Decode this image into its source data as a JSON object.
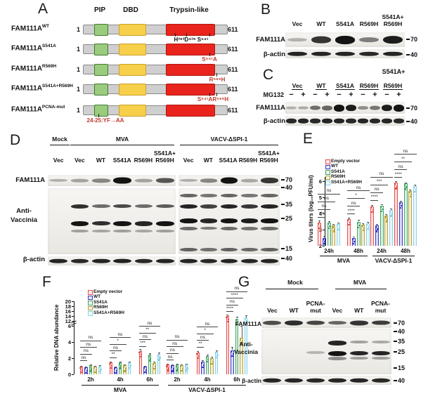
{
  "colors": {
    "pip_green": "#9bcb7d",
    "pip_green_border": "#3f7a33",
    "dbd_yellow": "#f7cf4a",
    "dbd_yellow_border": "#c9a22a",
    "trypsin_red": "#e8241d",
    "trypsin_red_border": "#b0140f",
    "annotation_red": "#c0392b",
    "series": [
      "#e85050",
      "#3a3ac6",
      "#46a566",
      "#b5a23a",
      "#8bd2e8"
    ]
  },
  "panelA": {
    "label": "A",
    "domain_headers": [
      "PIP",
      "DBD",
      "Trypsin-like"
    ],
    "n_start": "1",
    "n_end": "611",
    "rows": [
      {
        "name": "FAM111A",
        "sup": "WT",
        "annotation": "H³⁹³D⁴³⁹  S⁵⁴¹",
        "annotation_color": "black"
      },
      {
        "name": "FAM111A",
        "sup": "S541A",
        "annotation": "S⁵⁴¹A",
        "annotation_color": "red"
      },
      {
        "name": "FAM111A",
        "sup": "R569H",
        "annotation": "R⁵⁶⁹H",
        "annotation_color": "red"
      },
      {
        "name": "FAM111A",
        "sup": "S541A+R569H",
        "annotation": "S⁵⁴¹AR⁵⁶⁹H",
        "annotation_color": "red"
      },
      {
        "name": "FAM111A",
        "sup": "PCNA-mut",
        "annotation": "24-25:YF→AA",
        "annotation_color": "red"
      }
    ]
  },
  "panelB": {
    "label": "B",
    "lane_headers": [
      "Vec",
      "WT",
      "S541A",
      "R569H",
      "S541A+\nR569H"
    ],
    "rows": [
      {
        "label": "FAM111A",
        "marker": "70",
        "bands": [
          0.04,
          0.8,
          1,
          0.35,
          0.95
        ]
      },
      {
        "label": "β-actin",
        "marker": "40",
        "bands": [
          0.9,
          0.9,
          0.9,
          0.88,
          0.9
        ]
      }
    ]
  },
  "panelC": {
    "label": "C",
    "corner_note": "S541A+",
    "group_headers": [
      "Vec",
      "WT",
      "S541A",
      "R569H",
      "R569H"
    ],
    "treatment_label": "MG132",
    "treatment_signs": [
      "−",
      "+",
      "−",
      "+",
      "−",
      "+",
      "−",
      "+",
      "−",
      "+"
    ],
    "rows": [
      {
        "label": "FAM111A",
        "marker": "70",
        "bands": [
          0.05,
          0.08,
          0.45,
          0.5,
          1,
          0.95,
          0.25,
          0.4,
          0.95,
          1
        ]
      },
      {
        "label": "β-actin",
        "marker": "40",
        "bands": [
          0.88,
          0.9,
          0.88,
          0.9,
          0.9,
          0.88,
          0.9,
          0.88,
          0.9,
          0.88
        ]
      }
    ]
  },
  "panelD": {
    "label": "D",
    "group_headers": [
      "Mock",
      "MVA",
      "VACV-ΔSPI-1"
    ],
    "lane_headers_left": [
      "Vec",
      "Vec",
      "WT",
      "S541A",
      "R569H",
      "S541A+\nR569H"
    ],
    "lane_headers_right": [
      "Vec",
      "WT",
      "S541A",
      "R569H",
      "S541A+\nR569H"
    ],
    "row_labels": [
      "FAM111A",
      "Anti-\nVaccinia",
      "β-actin"
    ],
    "markers": [
      "70",
      "40",
      "35",
      "25",
      "15",
      "40"
    ],
    "fam111a_left": [
      0.05,
      0.12,
      0.3,
      1,
      0.12,
      0.6
    ],
    "fam111a_right": [
      0.06,
      0.3,
      1,
      0.1,
      0.8
    ],
    "antivaccinia_left": {
      "positions": [
        0.24,
        0.5,
        0.63
      ],
      "lanes": [
        [
          0,
          0,
          0
        ],
        [
          0.85,
          1,
          0.2
        ],
        [
          0.5,
          0.85,
          0.15
        ],
        [
          0.7,
          1,
          0.2
        ],
        [
          0.5,
          0.9,
          0.15
        ],
        [
          0.6,
          1,
          0.2
        ]
      ]
    },
    "antivaccinia_right": {
      "positions": [
        0.08,
        0.24,
        0.46,
        0.58,
        0.9
      ],
      "lanes": [
        [
          0.55,
          0.9,
          1,
          0.5,
          0.55
        ],
        [
          0.45,
          0.75,
          0.9,
          0.4,
          0.45
        ],
        [
          0.55,
          0.9,
          1,
          0.5,
          0.55
        ],
        [
          0.45,
          0.8,
          0.95,
          0.45,
          0.5
        ],
        [
          0.55,
          0.9,
          1,
          0.5,
          0.55
        ]
      ]
    },
    "actin_left": [
      0.9,
      0.88,
      0.9,
      0.92,
      0.88,
      0.9
    ],
    "actin_right": [
      0.9,
      0.88,
      0.9,
      0.88,
      0.9
    ]
  },
  "panelG": {
    "label": "G",
    "group_headers": [
      "Mock",
      "MVA"
    ],
    "lane_headers": [
      "Vec",
      "WT",
      "PCNA-\nmut",
      "Vec",
      "WT",
      "PCNA-\nmut"
    ],
    "row_labels": [
      "FAM111A",
      "Anti-\nVaccinia",
      "β-actin"
    ],
    "markers": [
      "70",
      "40",
      "35",
      "25",
      "15",
      "40"
    ],
    "fam111a": [
      0.65,
      0.85,
      0.7,
      0.5,
      0.8,
      0.75
    ],
    "antivaccinia": {
      "positions": [
        0.26,
        0.49,
        0.62
      ],
      "lanes": [
        [
          0,
          0,
          0
        ],
        [
          0,
          0,
          0
        ],
        [
          0,
          0.08,
          0
        ],
        [
          0.9,
          1,
          0.3
        ],
        [
          0.2,
          0.9,
          0.2
        ],
        [
          0.15,
          0.9,
          0.2
        ]
      ]
    },
    "actin": [
      0.9,
      0.9,
      0.88,
      0.9,
      0.9,
      0.88
    ]
  },
  "chart_data": [
    {
      "id": "E",
      "panel_label": "E",
      "type": "bar",
      "ylabel": "Virus titers (log₁₀PFU/ml)",
      "ylim": [
        2,
        6
      ],
      "yticks": [
        2,
        3,
        4,
        5,
        6
      ],
      "legend": [
        "Empty vector",
        "WT",
        "S541A",
        "R569H",
        "S541A+R569H"
      ],
      "legend_position": "top-left",
      "conditions": [
        {
          "label": "MVA",
          "timepoints": [
            "24h",
            "48h"
          ]
        },
        {
          "label": "VACV-ΔSPI-1",
          "timepoints": [
            "24h",
            "48h"
          ]
        }
      ],
      "groups": [
        {
          "condition": "MVA",
          "label": "24h",
          "values": [
            3.45,
            2.5,
            3.45,
            3.25,
            3.35
          ],
          "errors": [
            0.1,
            0.1,
            0.08,
            0.08,
            0.1
          ],
          "sig_bottom_to_top": [
            "***",
            "ns",
            "ns",
            "ns"
          ]
        },
        {
          "condition": "MVA",
          "label": "48h",
          "values": [
            3.65,
            2.5,
            3.5,
            3.3,
            3.4
          ],
          "errors": [
            0.08,
            0.08,
            0.1,
            0.08,
            0.1
          ],
          "sig_bottom_to_top": [
            "****",
            "ns",
            "*",
            "ns"
          ]
        },
        {
          "condition": "VACV-ΔSPI-1",
          "label": "24h",
          "values": [
            4.45,
            3.25,
            4.5,
            3.85,
            4.2
          ],
          "errors": [
            0.08,
            0.1,
            0.08,
            0.1,
            0.1
          ],
          "sig_bottom_to_top": [
            "****",
            "ns",
            "***",
            "ns"
          ]
        },
        {
          "condition": "VACV-ΔSPI-1",
          "label": "48h",
          "values": [
            5.9,
            4.7,
            5.85,
            5.4,
            5.7
          ],
          "errors": [
            0.08,
            0.1,
            0.08,
            0.08,
            0.08
          ],
          "sig_bottom_to_top": [
            "****",
            "ns",
            "**",
            "ns"
          ]
        }
      ]
    },
    {
      "id": "F",
      "panel_label": "F",
      "type": "bar",
      "ylabel": "Relative DNA abundance",
      "axis_break": {
        "lower": [
          0,
          6
        ],
        "upper": [
          12,
          20
        ]
      },
      "yticks_lower": [
        0,
        2,
        4,
        6
      ],
      "yticks_upper": [
        12,
        14,
        16,
        18,
        20
      ],
      "legend": [
        "Empty vector",
        "WT",
        "S541A",
        "R569H",
        "S541A+R569H"
      ],
      "legend_position": "top-left",
      "conditions": [
        {
          "label": "MVA",
          "timepoints": [
            "2h",
            "4h",
            "6h"
          ]
        },
        {
          "label": "VACV-ΔSPI-1",
          "timepoints": [
            "2h",
            "4h",
            "6h"
          ]
        }
      ],
      "groups": [
        {
          "condition": "MVA",
          "label": "2h",
          "values": [
            1.0,
            0.9,
            1.1,
            1.0,
            1.05
          ],
          "errors": [
            0.08,
            0.08,
            0.08,
            0.08,
            0.08
          ],
          "sig_bottom_to_top": [
            "ns",
            "ns",
            "ns",
            "ns"
          ]
        },
        {
          "condition": "MVA",
          "label": "4h",
          "values": [
            1.5,
            0.9,
            1.45,
            1.1,
            1.5
          ],
          "errors": [
            0.1,
            0.08,
            0.1,
            0.08,
            0.1
          ],
          "sig_bottom_to_top": [
            "**",
            "ns",
            "*",
            "ns"
          ]
        },
        {
          "condition": "MVA",
          "label": "6h",
          "values": [
            2.9,
            0.95,
            2.4,
            1.4,
            2.5
          ],
          "errors": [
            0.25,
            0.1,
            0.2,
            0.15,
            0.2
          ],
          "sig_bottom_to_top": [
            "***",
            "ns",
            "**",
            "ns"
          ]
        },
        {
          "condition": "VACV-ΔSPI-1",
          "label": "2h",
          "values": [
            1.2,
            1.1,
            1.2,
            1.15,
            1.2
          ],
          "errors": [
            0.08,
            0.08,
            0.08,
            0.08,
            0.08
          ],
          "sig_bottom_to_top": [
            "ns",
            "ns",
            "ns",
            "ns"
          ]
        },
        {
          "condition": "VACV-ΔSPI-1",
          "label": "4h",
          "values": [
            2.7,
            1.6,
            2.3,
            2.0,
            2.8
          ],
          "errors": [
            0.15,
            0.12,
            0.15,
            0.15,
            0.15
          ],
          "sig_bottom_to_top": [
            "**",
            "ns",
            "*",
            "ns"
          ]
        },
        {
          "condition": "VACV-ΔSPI-1",
          "label": "6h",
          "values": [
            14,
            3,
            13,
            4.5,
            13.5
          ],
          "errors": [
            0.6,
            0.4,
            0.8,
            1.5,
            0.7
          ],
          "sig_bottom_to_top": [
            "****",
            "ns",
            "****",
            "ns"
          ]
        }
      ]
    }
  ]
}
